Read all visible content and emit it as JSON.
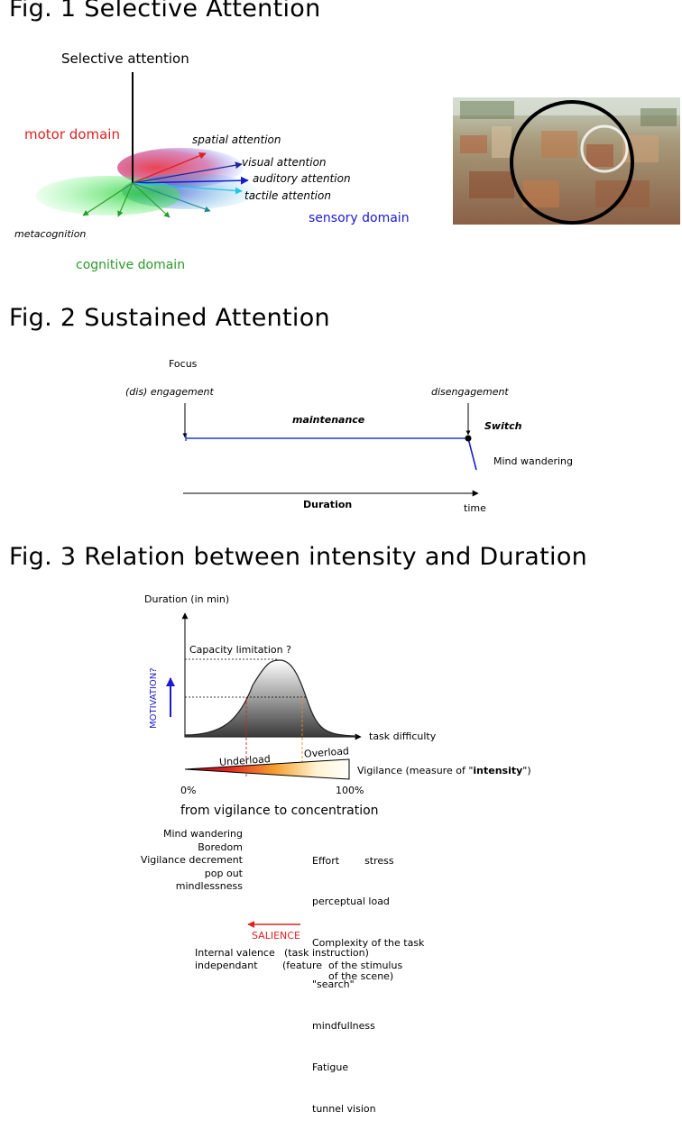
{
  "fig1": {
    "title": "Fig. 1 Selective Attention",
    "axis_label": "Selective attention",
    "motor_domain": "motor domain",
    "sensory_domain": "sensory  domain",
    "cognitive_domain": "cognitive  domain",
    "spatial": "spatial attention",
    "visual": "visual attention",
    "auditory": "auditory attention",
    "tactile": "tactile attention",
    "metacognition": "metacognition",
    "colors": {
      "motor": "#e02020",
      "sensory": "#1a1ad0",
      "cognitive": "#2a9a2a",
      "tactile": "#19c8e8"
    }
  },
  "fig2": {
    "title": "Fig. 2 Sustained Attention",
    "focus": "Focus",
    "engagement": "(dis) engagement",
    "disengagement": "disengagement",
    "maintenance": "maintenance",
    "switch": "Switch",
    "mind_wandering": "Mind wandering",
    "duration": "Duration",
    "time": "time"
  },
  "fig3": {
    "title": "Fig. 3 Relation between intensity and Duration",
    "y_axis": "Duration (in min)",
    "capacity": "Capacity limitation ?",
    "motivation": "MOTIVATION?",
    "x_axis": "task difficulty",
    "underload": "Underload",
    "overload": "Overload",
    "vigilance_prefix": "Vigilance  (measure of \"",
    "vigilance_bold": "intensity",
    "vigilance_suffix": "\")",
    "pct_0": "0%",
    "pct_100": "100%",
    "from_to": "from vigilance to concentration",
    "left_list": [
      "Mind wandering",
      "Boredom",
      "Vigilance decrement",
      "pop out",
      "mindlessness"
    ],
    "right_list": [
      "Effort        stress",
      "perceptual load",
      "Complexity of the task",
      "\"search\"",
      "mindfullness",
      "Fatigue",
      "tunnel vision"
    ],
    "salience": "SALIENCE",
    "internal_valence": "Internal valence",
    "independant": "independant",
    "task_instruction": "(task instruction)",
    "feature_stimulus": "(feature  of the stimulus",
    "of_scene": "of the scene)"
  }
}
